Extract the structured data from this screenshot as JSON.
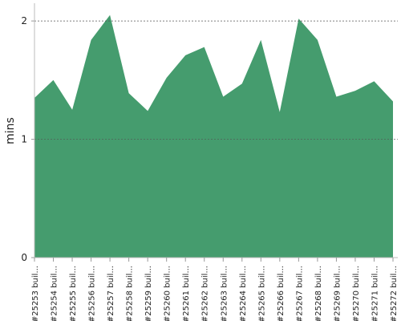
{
  "chart_data": {
    "type": "area",
    "y_label": "mins",
    "categories": [
      "#25253 buil...",
      "#25254 buil...",
      "#25255 buil...",
      "#25256 buil...",
      "#25257 buil...",
      "#25258 buil...",
      "#25259 buil...",
      "#25260 buil...",
      "#25261 buil...",
      "#25262 buil...",
      "#25263 buil...",
      "#25264 buil...",
      "#25265 buil...",
      "#25266 buil...",
      "#25267 buil...",
      "#25268 buil...",
      "#25269 buil...",
      "#25270 buil...",
      "#25271 buil...",
      "#25272 buil..."
    ],
    "values": [
      1.35,
      1.5,
      1.25,
      1.84,
      2.05,
      1.39,
      1.24,
      1.52,
      1.71,
      1.78,
      1.36,
      1.47,
      1.84,
      1.23,
      2.02,
      1.84,
      1.36,
      1.41,
      1.49,
      1.32
    ],
    "color": "#459c6e",
    "ylim": [
      0,
      2.15
    ],
    "yticks": [
      0,
      1,
      2
    ],
    "grid": true
  }
}
